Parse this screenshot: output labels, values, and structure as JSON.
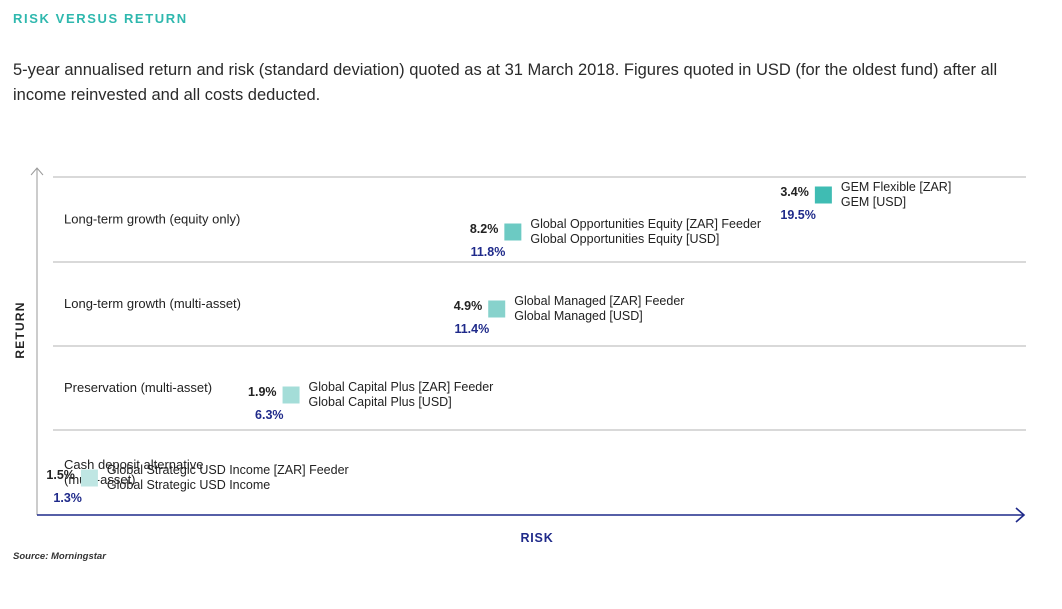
{
  "heading": "RISK VERSUS RETURN",
  "intro": "5-year annualised return and risk (standard deviation) quoted as at 31 March 2018. Figures quoted in USD (for the oldest fund) after all income reinvested and all costs deducted.",
  "source": "Source: Morningstar",
  "colors": {
    "accent": "#2fb8ae",
    "axis": "#1f2a8a",
    "risk_value": "#1f2a8a",
    "marker_levels": [
      "#bfe6e3",
      "#a4ddd8",
      "#87d2cc",
      "#6ccac3",
      "#3fbcb3"
    ]
  },
  "chart_data": {
    "type": "scatter",
    "xlabel": "RISK",
    "ylabel": "RETURN",
    "categories": [
      "Cash deposit alternative (multi-asset)",
      "Preservation (multi-asset)",
      "Long-term growth (multi-asset)",
      "Long-term growth (equity only)"
    ],
    "category_labels": [
      [
        "Cash deposit alternative",
        "(multi-asset)"
      ],
      [
        "Preservation (multi-asset)"
      ],
      [
        "Long-term growth (multi-asset)"
      ],
      [
        "Long-term growth (equity only)"
      ]
    ],
    "points": [
      {
        "category": 0,
        "risk": 1.3,
        "return": 1.5,
        "risk_label": "1.3%",
        "return_label": "1.5%",
        "names": [
          "Global Strategic USD Income [ZAR] Feeder",
          "Global Strategic USD Income"
        ],
        "shade": 0
      },
      {
        "category": 1,
        "risk": 6.3,
        "return": 1.9,
        "risk_label": "6.3%",
        "return_label": "1.9%",
        "names": [
          "Global Capital Plus [ZAR] Feeder",
          "Global Capital Plus [USD]"
        ],
        "shade": 1
      },
      {
        "category": 2,
        "risk": 11.4,
        "return": 4.9,
        "risk_label": "11.4%",
        "return_label": "4.9%",
        "names": [
          "Global Managed [ZAR] Feeder",
          "Global Managed [USD]"
        ],
        "shade": 2
      },
      {
        "category": 3,
        "risk": 11.8,
        "return": 8.2,
        "risk_label": "11.8%",
        "return_label": "8.2%",
        "names": [
          "Global Opportunities Equity [ZAR] Feeder",
          "Global Opportunities Equity [USD]"
        ],
        "shade": 3
      },
      {
        "category": 3,
        "risk": 19.5,
        "return": 3.4,
        "risk_label": "19.5%",
        "return_label": "3.4%",
        "names": [
          "GEM Flexible [ZAR]",
          "GEM [USD]"
        ],
        "shade": 4
      }
    ]
  }
}
